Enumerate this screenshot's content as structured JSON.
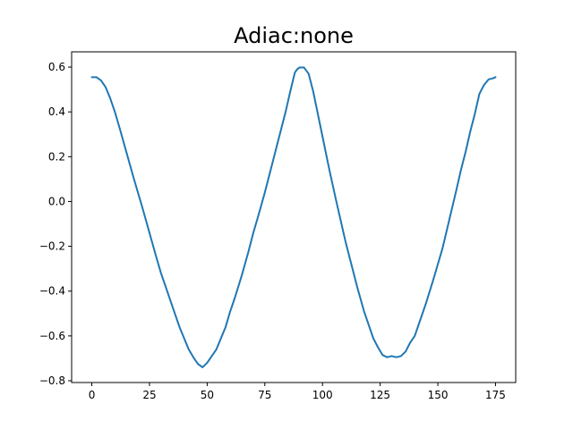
{
  "chart_data": {
    "type": "line",
    "title": "Adiac:none",
    "xlabel": "",
    "ylabel": "",
    "xlim": [
      -8.75,
      183.75
    ],
    "ylim": [
      -0.808,
      0.668
    ],
    "xticks": [
      0,
      25,
      50,
      75,
      100,
      125,
      150,
      175
    ],
    "xtick_labels": [
      "0",
      "25",
      "50",
      "75",
      "100",
      "125",
      "150",
      "175"
    ],
    "yticks": [
      -0.8,
      -0.6,
      -0.4,
      -0.2,
      0.0,
      0.2,
      0.4,
      0.6
    ],
    "ytick_labels": [
      "−0.8",
      "−0.6",
      "−0.4",
      "−0.2",
      "0.0",
      "0.2",
      "0.4",
      "0.6"
    ],
    "grid": false,
    "legend": "none",
    "series": [
      {
        "color": "#1f77b4",
        "x": [
          0,
          2,
          4,
          6,
          8,
          10,
          12,
          15,
          18,
          20,
          22,
          25,
          28,
          30,
          32,
          35,
          38,
          40,
          42,
          44,
          45,
          46,
          48,
          50,
          52,
          54,
          56,
          58,
          60,
          62,
          65,
          68,
          70,
          72,
          75,
          78,
          80,
          82,
          84,
          86,
          88,
          89,
          90,
          92,
          94,
          96,
          98,
          100,
          103,
          106,
          108,
          110,
          112,
          115,
          118,
          120,
          122,
          124,
          126,
          128,
          130,
          132,
          134,
          136,
          138,
          140,
          142,
          145,
          148,
          150,
          152,
          155,
          158,
          160,
          162,
          164,
          166,
          168,
          170,
          172,
          174,
          175
        ],
        "y": [
          0.555,
          0.555,
          0.54,
          0.51,
          0.46,
          0.4,
          0.33,
          0.22,
          0.11,
          0.04,
          -0.03,
          -0.14,
          -0.25,
          -0.32,
          -0.38,
          -0.47,
          -0.56,
          -0.61,
          -0.66,
          -0.695,
          -0.71,
          -0.725,
          -0.74,
          -0.72,
          -0.69,
          -0.66,
          -0.61,
          -0.56,
          -0.49,
          -0.43,
          -0.33,
          -0.22,
          -0.14,
          -0.07,
          0.04,
          0.16,
          0.24,
          0.32,
          0.4,
          0.49,
          0.575,
          0.59,
          0.598,
          0.598,
          0.57,
          0.49,
          0.39,
          0.29,
          0.14,
          0.0,
          -0.09,
          -0.18,
          -0.26,
          -0.38,
          -0.49,
          -0.55,
          -0.61,
          -0.65,
          -0.685,
          -0.695,
          -0.69,
          -0.695,
          -0.69,
          -0.67,
          -0.63,
          -0.6,
          -0.54,
          -0.45,
          -0.35,
          -0.28,
          -0.21,
          -0.08,
          0.05,
          0.14,
          0.22,
          0.31,
          0.39,
          0.48,
          0.52,
          0.545,
          0.55,
          0.555
        ]
      }
    ]
  }
}
